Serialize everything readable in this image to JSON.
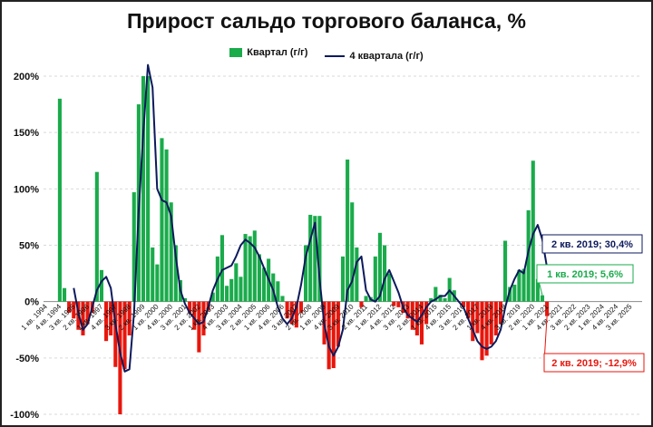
{
  "chart_data": {
    "type": "bar",
    "title": "Прирост сальдо торгового баланса, %",
    "yticks": [
      "200%",
      "150%",
      "100%",
      "50%",
      "0%",
      "-50%",
      "-100%"
    ],
    "ytick_values": [
      200,
      150,
      100,
      50,
      0,
      -50,
      -100
    ],
    "ylim": [
      -100,
      200
    ],
    "x_labels": [
      "1 кв. 1994",
      "4 кв. 1994",
      "3 кв. 1995",
      "2 кв. 1996",
      "1 кв. 1997",
      "4 кв. 1997",
      "3 кв. 1998",
      "2 кв. 1999",
      "1 кв. 2000",
      "4 кв. 2000",
      "3 кв. 2001",
      "2 кв. 2002",
      "1 кв. 2003",
      "4 кв. 2003",
      "3 кв. 2004",
      "2 кв. 2005",
      "1 кв. 2006",
      "4 кв. 2006",
      "3 кв. 2007",
      "2 кв. 2008",
      "1 кв. 2009",
      "4 кв. 2009",
      "3 кв. 2010",
      "2 кв. 2011",
      "1 кв. 2012",
      "4 кв. 2012",
      "3 кв. 2013",
      "2 кв. 2014",
      "1 кв. 2015",
      "4 кв. 2015",
      "3 кв. 2016",
      "2 кв. 2017",
      "1 кв. 2018",
      "4 кв. 2018",
      "3 кв. 2019",
      "2 кв. 2020",
      "1 кв. 2021",
      "4 кв. 2021",
      "3 кв. 2022",
      "2 кв. 2023",
      "1 кв. 2024",
      "4 кв. 2024",
      "3 кв. 2025"
    ],
    "colors": {
      "positive": "#1aab4b",
      "negative": "#e8160c",
      "line": "#0d1a5c"
    },
    "series": [
      {
        "name": "Квартал (г/г)",
        "start": "1 кв. 1994",
        "values": [
          0,
          0,
          0,
          180,
          12,
          -10,
          -15,
          -25,
          -30,
          -20,
          -10,
          115,
          28,
          -35,
          -30,
          -58,
          -100,
          -60,
          -30,
          97,
          175,
          200,
          200,
          48,
          33,
          145,
          135,
          88,
          50,
          19,
          3,
          -10,
          -25,
          -45,
          -30,
          -8,
          8,
          40,
          59,
          14,
          20,
          34,
          22,
          60,
          58,
          63,
          42,
          30,
          38,
          25,
          18,
          5,
          -15,
          -20,
          -23,
          -10,
          50,
          77,
          76,
          76,
          -38,
          -60,
          -59,
          -40,
          40,
          126,
          88,
          48,
          -5,
          5,
          4,
          40,
          61,
          50,
          25,
          -4,
          -5,
          -10,
          -15,
          -25,
          -30,
          -38,
          -20,
          3,
          13,
          6,
          3,
          21,
          10,
          0,
          -5,
          -15,
          -35,
          -28,
          -52,
          -48,
          -38,
          -30,
          -20,
          54,
          13,
          15,
          28,
          29,
          81,
          125,
          20,
          5.6,
          -12.9
        ]
      },
      {
        "name": "4 квартала (г/г)",
        "start": "1 кв. 1994",
        "values": [
          null,
          null,
          null,
          null,
          null,
          null,
          12,
          -10,
          -25,
          -20,
          -5,
          10,
          18,
          22,
          12,
          -20,
          -45,
          -62,
          -60,
          -10,
          80,
          150,
          210,
          190,
          100,
          90,
          88,
          76,
          40,
          10,
          -2,
          -10,
          -15,
          -20,
          -18,
          -5,
          10,
          20,
          28,
          30,
          32,
          40,
          50,
          55,
          52,
          48,
          40,
          30,
          20,
          10,
          -5,
          -15,
          -20,
          -15,
          -5,
          15,
          40,
          55,
          70,
          20,
          -20,
          -40,
          -48,
          -40,
          -25,
          10,
          18,
          35,
          40,
          10,
          2,
          0,
          5,
          20,
          28,
          18,
          8,
          -5,
          -12,
          -15,
          -18,
          -12,
          -5,
          0,
          2,
          5,
          5,
          10,
          5,
          0,
          -5,
          -15,
          -25,
          -35,
          -40,
          -42,
          -40,
          -35,
          -25,
          -5,
          10,
          20,
          28,
          25,
          45,
          60,
          68,
          55,
          30.4
        ]
      }
    ],
    "annotations": [
      {
        "text": "2 кв. 2019; 30,4%",
        "color": "#0d1a5c"
      },
      {
        "text": "1 кв. 2019; 5,6%",
        "color": "#1aab4b"
      },
      {
        "text": "2 кв. 2019; -12,9%",
        "color": "#e8160c"
      }
    ]
  }
}
